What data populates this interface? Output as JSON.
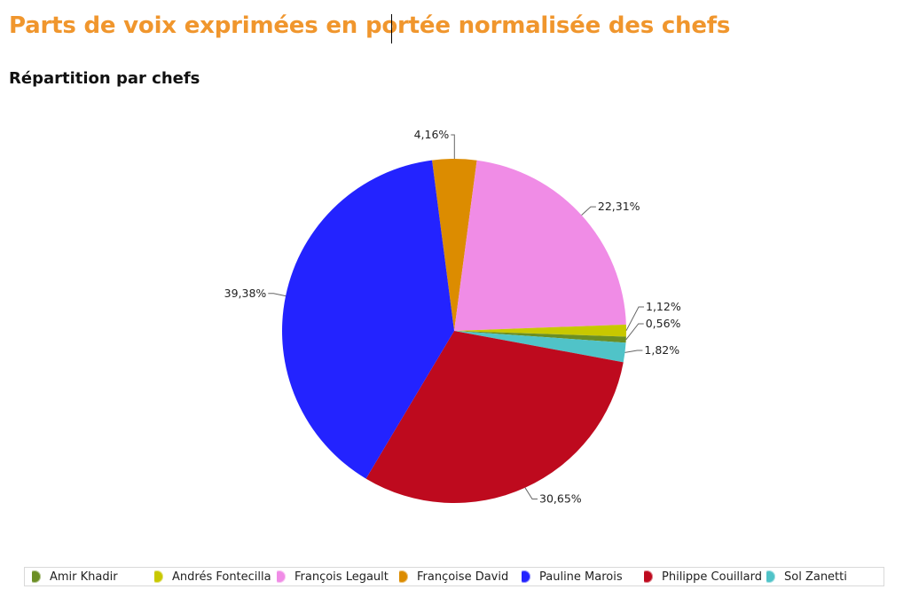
{
  "header": {
    "title": "Parts de voix exprimées en portée normalisée des chefs",
    "subtitle": "Répartition par chefs"
  },
  "chart_data": {
    "type": "pie",
    "categories": [
      "Amir Khadir",
      "Andrés Fontecilla",
      "François Legault",
      "Françoise David",
      "Pauline Marois",
      "Philippe Couillard",
      "Sol Zanetti"
    ],
    "values": [
      0.56,
      1.12,
      22.31,
      4.16,
      39.38,
      30.65,
      1.82
    ],
    "labels": [
      "0,56%",
      "1,12%",
      "22,31%",
      "4,16%",
      "39,38%",
      "30,65%",
      "1,82%"
    ],
    "colors": [
      "#6b8e23",
      "#c8c800",
      "#f08ce6",
      "#dc8c00",
      "#2323ff",
      "#be0a1e",
      "#50c3c8"
    ],
    "legend_position": "bottom"
  }
}
